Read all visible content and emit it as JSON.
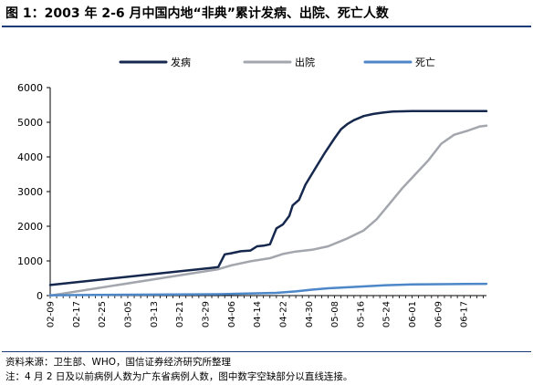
{
  "title": "图 1：2003 年 2-6 月中国内地“非典”累计发病、出院、死亡人数",
  "source": "资料来源：卫生部、WHO，国信证券经济研究所整理",
  "note": "注：4 月 2 日及以前病例人数为广东省病例人数，图中数字空缺部分以直线连接。",
  "chart_data": {
    "type": "line",
    "legend_position": "top-center",
    "grid": false,
    "ylim": [
      0,
      6000
    ],
    "yticks": [
      0,
      1000,
      2000,
      3000,
      4000,
      5000,
      6000
    ],
    "x_tick_labels": [
      "02-09",
      "02-17",
      "02-25",
      "03-05",
      "03-13",
      "03-21",
      "03-29",
      "04-06",
      "04-14",
      "04-22",
      "04-30",
      "05-08",
      "05-16",
      "05-24",
      "06-01",
      "06-09",
      "06-17"
    ],
    "series": [
      {
        "name": "发病",
        "color": "#16284d",
        "points": [
          [
            "2003-02-09",
            305
          ],
          [
            "2003-03-31",
            800
          ],
          [
            "2003-04-02",
            820
          ],
          [
            "2003-04-04",
            1190
          ],
          [
            "2003-04-06",
            1220
          ],
          [
            "2003-04-09",
            1280
          ],
          [
            "2003-04-12",
            1300
          ],
          [
            "2003-04-14",
            1420
          ],
          [
            "2003-04-16",
            1440
          ],
          [
            "2003-04-18",
            1480
          ],
          [
            "2003-04-20",
            1940
          ],
          [
            "2003-04-22",
            2050
          ],
          [
            "2003-04-24",
            2300
          ],
          [
            "2003-04-25",
            2600
          ],
          [
            "2003-04-27",
            2760
          ],
          [
            "2003-04-29",
            3200
          ],
          [
            "2003-05-02",
            3660
          ],
          [
            "2003-05-05",
            4120
          ],
          [
            "2003-05-08",
            4540
          ],
          [
            "2003-05-10",
            4800
          ],
          [
            "2003-05-12",
            4950
          ],
          [
            "2003-05-14",
            5060
          ],
          [
            "2003-05-17",
            5180
          ],
          [
            "2003-05-20",
            5240
          ],
          [
            "2003-05-23",
            5280
          ],
          [
            "2003-05-26",
            5310
          ],
          [
            "2003-06-01",
            5320
          ],
          [
            "2003-06-24",
            5320
          ]
        ]
      },
      {
        "name": "出院",
        "color": "#a3a7ad",
        "points": [
          [
            "2003-02-09",
            0
          ],
          [
            "2003-04-02",
            760
          ],
          [
            "2003-04-06",
            870
          ],
          [
            "2003-04-12",
            990
          ],
          [
            "2003-04-18",
            1080
          ],
          [
            "2003-04-22",
            1200
          ],
          [
            "2003-04-26",
            1270
          ],
          [
            "2003-05-01",
            1320
          ],
          [
            "2003-05-06",
            1420
          ],
          [
            "2003-05-12",
            1650
          ],
          [
            "2003-05-17",
            1880
          ],
          [
            "2003-05-21",
            2200
          ],
          [
            "2003-05-25",
            2650
          ],
          [
            "2003-05-29",
            3100
          ],
          [
            "2003-06-02",
            3500
          ],
          [
            "2003-06-06",
            3900
          ],
          [
            "2003-06-10",
            4380
          ],
          [
            "2003-06-14",
            4640
          ],
          [
            "2003-06-18",
            4750
          ],
          [
            "2003-06-22",
            4880
          ],
          [
            "2003-06-24",
            4900
          ]
        ]
      },
      {
        "name": "死亡",
        "color": "#4d87c7",
        "points": [
          [
            "2003-02-09",
            10
          ],
          [
            "2003-04-02",
            40
          ],
          [
            "2003-04-20",
            80
          ],
          [
            "2003-04-26",
            120
          ],
          [
            "2003-05-01",
            170
          ],
          [
            "2003-05-06",
            210
          ],
          [
            "2003-05-12",
            240
          ],
          [
            "2003-05-18",
            270
          ],
          [
            "2003-05-24",
            300
          ],
          [
            "2003-06-01",
            320
          ],
          [
            "2003-06-10",
            330
          ],
          [
            "2003-06-24",
            340
          ]
        ]
      }
    ]
  }
}
